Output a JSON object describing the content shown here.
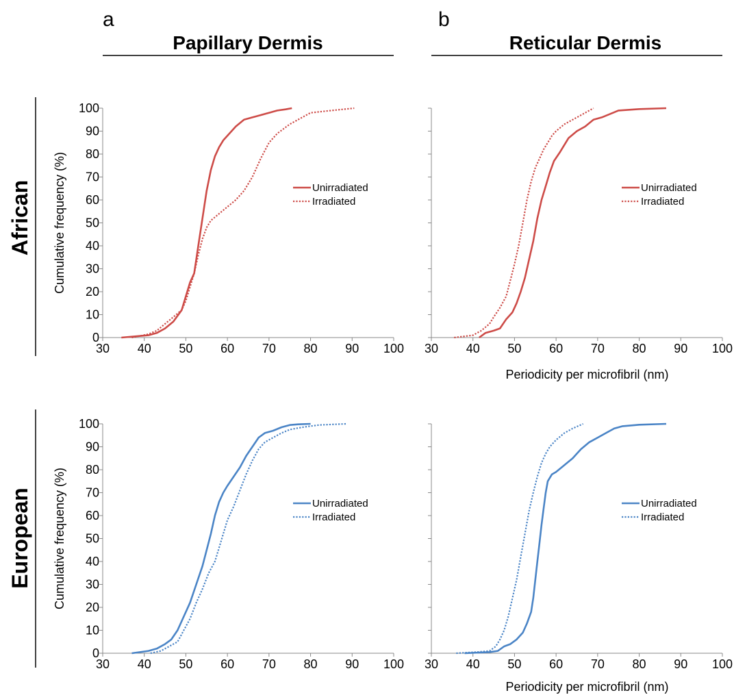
{
  "figure": {
    "panel_letters": [
      "a",
      "b"
    ],
    "column_titles": [
      "Papillary Dermis",
      "Reticular Dermis"
    ],
    "row_titles": [
      "African",
      "European"
    ],
    "colors": {
      "african": "#cd4b47",
      "european": "#4a84c6"
    }
  },
  "chart_data": [
    {
      "type": "line",
      "panel": "a-top",
      "title": "",
      "xlabel": "",
      "ylabel": "Cumulative frequency (%)",
      "xlim": [
        30,
        100
      ],
      "ylim": [
        0,
        100
      ],
      "xticks": [
        30,
        40,
        50,
        60,
        70,
        80,
        90,
        100
      ],
      "yticks": [
        0,
        10,
        20,
        30,
        40,
        50,
        60,
        70,
        80,
        90,
        100
      ],
      "grid": false,
      "legend": "center-right",
      "series": [
        {
          "name": "Unirradiated",
          "style": "solid",
          "color": "#cd4b47",
          "x": [
            34.5,
            41,
            43,
            45,
            47,
            49,
            50,
            51,
            52,
            53,
            54,
            55,
            56,
            57,
            58,
            59,
            60,
            62,
            64,
            66,
            68,
            70,
            72,
            74,
            75.5
          ],
          "y": [
            0,
            1,
            2,
            4,
            7,
            12,
            18,
            24,
            28,
            40,
            52,
            64,
            73,
            79,
            83,
            86,
            88,
            92,
            95,
            96,
            97,
            98,
            99,
            99.5,
            100
          ]
        },
        {
          "name": "Irradiated",
          "style": "dotted",
          "color": "#cd4b47",
          "x": [
            37,
            41,
            43,
            45,
            47,
            49,
            50,
            51,
            52,
            53,
            54,
            55,
            56,
            58,
            60,
            62,
            64,
            66,
            68,
            70,
            72,
            75,
            78,
            80,
            85,
            90.5
          ],
          "y": [
            0,
            1.5,
            3,
            6,
            9,
            12,
            16,
            22,
            28,
            36,
            43,
            48,
            51,
            54,
            57,
            60,
            64,
            70,
            78,
            85,
            89,
            93,
            96,
            98,
            99,
            100
          ]
        }
      ]
    },
    {
      "type": "line",
      "panel": "b-top",
      "title": "",
      "xlabel": "Periodicity per microfibril (nm)",
      "ylabel": "",
      "xlim": [
        30,
        100
      ],
      "ylim": [
        0,
        100
      ],
      "xticks": [
        30,
        40,
        50,
        60,
        70,
        80,
        90,
        100
      ],
      "yticks": [
        0,
        10,
        20,
        30,
        40,
        50,
        60,
        70,
        80,
        90,
        100
      ],
      "grid": false,
      "legend": "center-right",
      "series": [
        {
          "name": "Unirradiated",
          "style": "solid",
          "color": "#cd4b47",
          "x": [
            41.5,
            43,
            45,
            46.5,
            48,
            49.5,
            50.5,
            51.5,
            52.5,
            53.5,
            54.5,
            55.5,
            56.5,
            57.5,
            58.5,
            59.5,
            61,
            63,
            65,
            67,
            69,
            71,
            73,
            75,
            80,
            86.5
          ],
          "y": [
            0,
            2,
            3,
            4,
            8,
            11,
            15,
            20,
            26,
            34,
            42,
            52,
            60,
            66,
            72,
            77,
            81,
            87,
            90,
            92,
            95,
            96,
            97.5,
            99,
            99.6,
            100
          ]
        },
        {
          "name": "Irradiated",
          "style": "dotted",
          "color": "#cd4b47",
          "x": [
            35.5,
            40,
            42,
            44,
            45,
            46.5,
            48,
            49,
            50,
            51,
            52,
            53,
            54,
            55,
            56,
            57,
            58,
            59,
            60,
            62,
            64,
            66,
            68,
            69
          ],
          "y": [
            0,
            1,
            3,
            6,
            9,
            13,
            18,
            25,
            32,
            40,
            50,
            60,
            68,
            74,
            78,
            82,
            85,
            88,
            90,
            93,
            95,
            97,
            99,
            100
          ]
        }
      ]
    },
    {
      "type": "line",
      "panel": "a-bottom",
      "title": "",
      "xlabel": "",
      "ylabel": "Cumulative frequency (%)",
      "xlim": [
        30,
        100
      ],
      "ylim": [
        0,
        100
      ],
      "xticks": [
        30,
        40,
        50,
        60,
        70,
        80,
        90,
        100
      ],
      "yticks": [
        0,
        10,
        20,
        30,
        40,
        50,
        60,
        70,
        80,
        90,
        100
      ],
      "grid": false,
      "legend": "center-right",
      "series": [
        {
          "name": "Unirradiated",
          "style": "solid",
          "color": "#4a84c6",
          "x": [
            37,
            41,
            43,
            45,
            46.5,
            48,
            49.5,
            51,
            52.5,
            54,
            55,
            56,
            57,
            58,
            59,
            60,
            61.5,
            63,
            64.5,
            66,
            67.5,
            69,
            71,
            73,
            75,
            77,
            80
          ],
          "y": [
            0,
            1,
            2,
            4,
            6,
            10,
            16,
            22,
            30,
            38,
            45,
            52,
            60,
            66,
            70,
            73,
            77,
            81,
            86,
            90,
            94,
            96,
            97,
            98.5,
            99.5,
            99.8,
            100
          ]
        },
        {
          "name": "Irradiated",
          "style": "dotted",
          "color": "#4a84c6",
          "x": [
            41.5,
            44,
            46,
            48,
            49.5,
            51,
            52.5,
            54,
            55.5,
            57,
            58.5,
            60,
            61.5,
            63,
            64.5,
            66,
            67.5,
            69,
            71,
            73,
            75,
            78,
            82,
            88.5
          ],
          "y": [
            0,
            1,
            3,
            5,
            10,
            15,
            22,
            28,
            35,
            40,
            49,
            58,
            64,
            71,
            78,
            84,
            89,
            92,
            94,
            96,
            97.5,
            98.5,
            99.5,
            100
          ]
        }
      ]
    },
    {
      "type": "line",
      "panel": "b-bottom",
      "title": "",
      "xlabel": "Periodicity per microfibril (nm)",
      "ylabel": "",
      "xlim": [
        30,
        100
      ],
      "ylim": [
        0,
        100
      ],
      "xticks": [
        30,
        40,
        50,
        60,
        70,
        80,
        90,
        100
      ],
      "yticks": [
        0,
        10,
        20,
        30,
        40,
        50,
        60,
        70,
        80,
        90,
        100
      ],
      "grid": false,
      "legend": "center-right",
      "series": [
        {
          "name": "Unirradiated",
          "style": "solid",
          "color": "#4a84c6",
          "x": [
            38,
            44,
            46,
            47.5,
            49,
            50.5,
            52,
            53,
            54,
            54.5,
            55,
            55.5,
            56,
            56.5,
            57,
            57.5,
            58,
            59,
            60,
            62,
            64,
            65,
            66,
            68,
            70,
            72,
            74,
            76,
            80,
            86.5
          ],
          "y": [
            0,
            0.5,
            1,
            3,
            4,
            6,
            9,
            13,
            18,
            24,
            32,
            40,
            48,
            56,
            63,
            70,
            75,
            78,
            79,
            82,
            85,
            87,
            89,
            92,
            94,
            96,
            98,
            99,
            99.6,
            100
          ]
        },
        {
          "name": "Irradiated",
          "style": "dotted",
          "color": "#4a84c6",
          "x": [
            36,
            41,
            44,
            45.5,
            46.5,
            47.5,
            48.5,
            49.5,
            50.5,
            51.5,
            52.5,
            53.5,
            54.5,
            55.5,
            56.5,
            57.5,
            58.5,
            60,
            62,
            64,
            66.5
          ],
          "y": [
            0,
            0.5,
            1,
            3,
            6,
            10,
            16,
            24,
            32,
            42,
            52,
            62,
            70,
            77,
            83,
            87,
            90,
            93,
            96,
            98,
            100
          ]
        }
      ]
    }
  ]
}
